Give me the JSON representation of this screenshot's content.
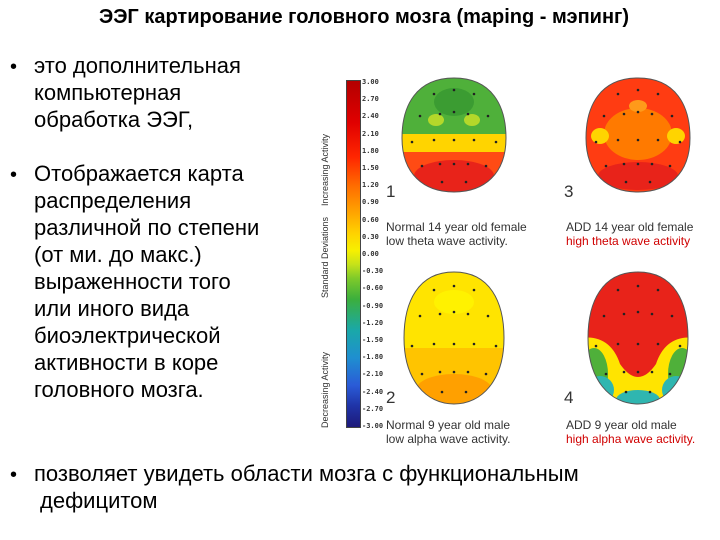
{
  "title": "ЭЭГ картирование головного мозга (maping - мэпинг)",
  "bullets": [
    {
      "lines": [
        "это дополнительная",
        "компьютерная",
        "обработка ЭЭГ,"
      ]
    },
    {
      "lines": [
        "Отображается карта",
        "распределения",
        "различной по степени",
        "(от ми. до макс.)",
        "выраженности того",
        "или иного вида",
        "биоэлектрической",
        "активности в коре",
        "головного мозга."
      ]
    },
    {
      "lines": [
        "позволяет увидеть области мозга с функциональным",
        "дефицитом"
      ]
    }
  ],
  "figure": {
    "scale_ticks": [
      "3.00",
      "2.70",
      "2.40",
      "2.10",
      "1.80",
      "1.50",
      "1.20",
      "0.90",
      "0.60",
      "0.30",
      "0.00",
      "-0.30",
      "-0.60",
      "-0.90",
      "-1.20",
      "-1.50",
      "-1.80",
      "-2.10",
      "-2.40",
      "-2.70",
      "-3.00"
    ],
    "axis_labels": {
      "increasing": "Increasing Activity",
      "std": "Standard Deviations",
      "decreasing": "Decreasing Activity"
    },
    "maps": [
      {
        "number": "1",
        "line1": "Normal 14 year old female",
        "line2_pre": "",
        "line2_band": "low theta wave activity.",
        "band_red": false
      },
      {
        "number": "3",
        "line1": "ADD 14 year old female",
        "line2_pre": "",
        "line2_band": "high theta wave activity",
        "band_red": true
      },
      {
        "number": "2",
        "line1": "Normal 9 year old male",
        "line2_pre": "",
        "line2_band": "low alpha wave activity.",
        "band_red": false
      },
      {
        "number": "4",
        "line1": "ADD 9 year old male",
        "line2_pre": "",
        "line2_band": "high alpha wave activity.",
        "band_red": true
      }
    ],
    "colors": {
      "red": "#e8231a",
      "orange": "#ff7a00",
      "yellow": "#ffe400",
      "green": "#4fb03a",
      "teal": "#2fb6b0",
      "blue": "#2a6fd6"
    }
  }
}
